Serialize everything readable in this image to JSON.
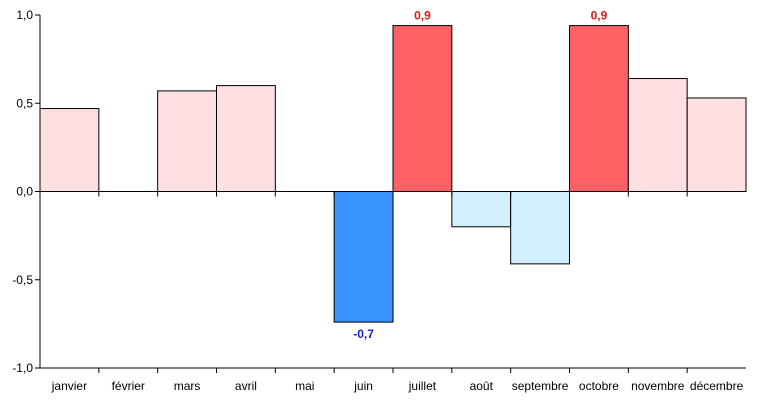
{
  "chart_data": {
    "type": "bar",
    "categories": [
      "janvier",
      "février",
      "mars",
      "avril",
      "mai",
      "juin",
      "juillet",
      "août",
      "septembre",
      "octobre",
      "novembre",
      "décembre"
    ],
    "values": [
      0.47,
      0.0,
      0.57,
      0.6,
      0.0,
      -0.74,
      0.94,
      -0.2,
      -0.41,
      0.94,
      0.64,
      0.53
    ],
    "bar_colors": [
      "#ffdfe2",
      "#ffdfe2",
      "#ffdfe2",
      "#ffdfe2",
      "#ffdfe2",
      "#3894ff",
      "#ff6265",
      "#d2efff",
      "#d2efff",
      "#ff6265",
      "#ffdfe2",
      "#ffdfe2"
    ],
    "data_labels": [
      {
        "index": 5,
        "text": "-0,7",
        "color": "#1a1acc"
      },
      {
        "index": 6,
        "text": "0,9",
        "color": "#e0161c"
      },
      {
        "index": 9,
        "text": "0,9",
        "color": "#e0161c"
      }
    ],
    "ylim": [
      -1.0,
      1.0
    ],
    "yticks": [
      {
        "value": 1.0,
        "label": "1,0"
      },
      {
        "value": 0.5,
        "label": "0,5"
      },
      {
        "value": 0.0,
        "label": "0,0"
      },
      {
        "value": -0.5,
        "label": "-0,5"
      },
      {
        "value": -1.0,
        "label": "-1,0"
      }
    ],
    "title": "",
    "xlabel": "",
    "ylabel": "",
    "grid": false,
    "legend": "none"
  }
}
